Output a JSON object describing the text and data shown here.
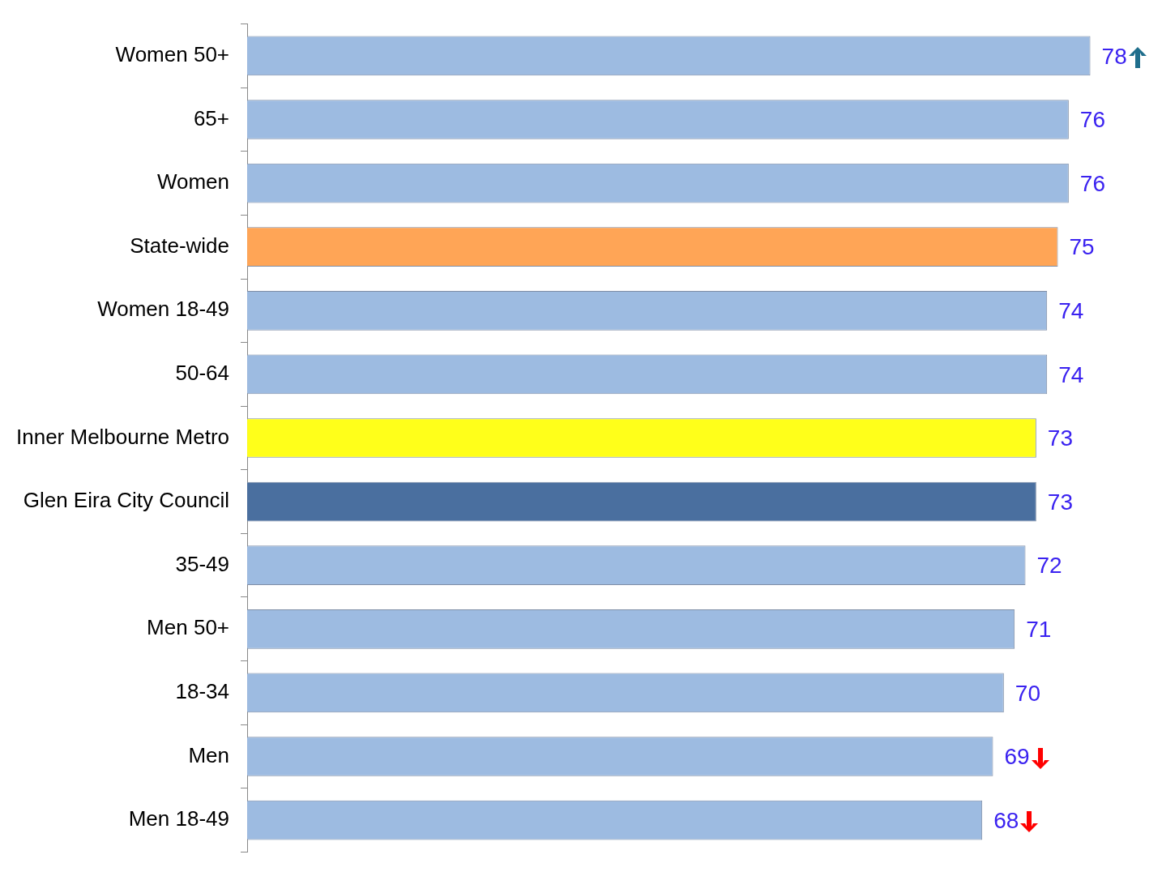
{
  "chart_data": {
    "type": "bar",
    "orientation": "horizontal",
    "categories": [
      "Women 50+",
      "65+",
      "Women",
      "State-wide",
      "Women 18-49",
      "50-64",
      "Inner Melbourne Metro",
      "Glen Eira City Council",
      "35-49",
      "Men 50+",
      "18-34",
      "Men",
      "Men 18-49"
    ],
    "values": [
      78,
      76,
      76,
      75,
      74,
      74,
      73,
      73,
      72,
      71,
      70,
      69,
      68
    ],
    "colors": [
      "#9dbbe1",
      "#9dbbe1",
      "#9dbbe1",
      "#ffa556",
      "#9dbbe1",
      "#9dbbe1",
      "#ffff1a",
      "#4a6f9f",
      "#9dbbe1",
      "#9dbbe1",
      "#9dbbe1",
      "#9dbbe1",
      "#9dbbe1"
    ],
    "data_labels": true,
    "grid": false,
    "legend": false,
    "tick_labels": "y"
  }
}
